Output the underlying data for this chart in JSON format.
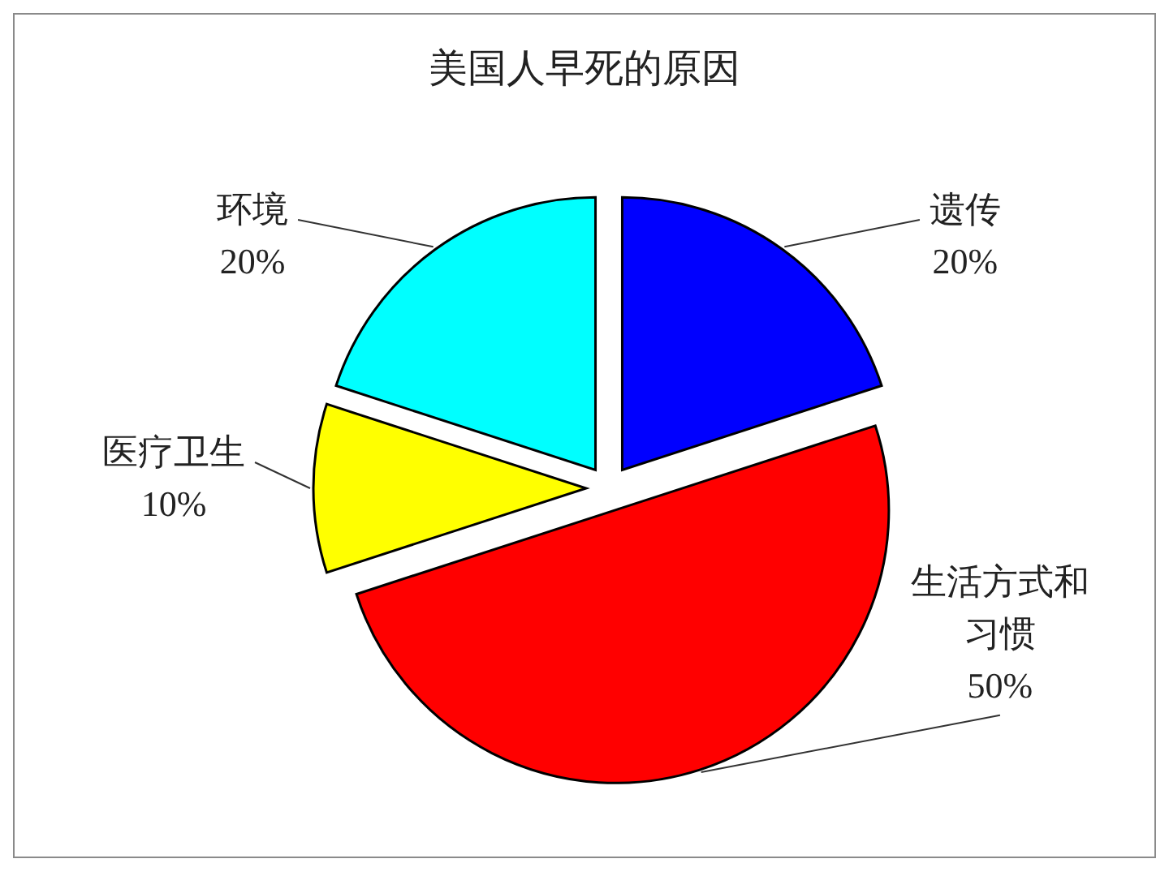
{
  "chart_data": {
    "type": "pie",
    "title": "美国人早死的原因",
    "categories": [
      "遗传",
      "生活方式和习惯",
      "医疗卫生",
      "环境"
    ],
    "values": [
      20,
      50,
      10,
      20
    ],
    "colors": [
      "#0000ff",
      "#ff0000",
      "#ffff00",
      "#00ffff"
    ],
    "value_labels": [
      "20%",
      "50%",
      "10%",
      "20%"
    ]
  }
}
